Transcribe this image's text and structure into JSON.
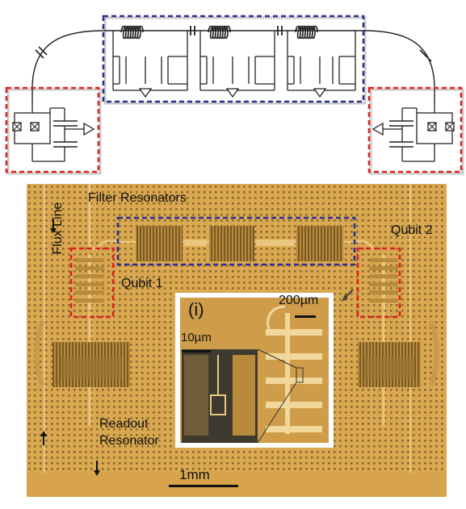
{
  "labels": {
    "flux_line": "Flux Line",
    "filter_resonators": "Filter Resonators",
    "qubit_1": "Qubit 1",
    "qubit_2": "Qubit 2",
    "inset_tag": "(i)",
    "scale_200um": "200µm",
    "scale_10um": "10µm",
    "readout_line1": "Readout",
    "readout_line2": "Resonator",
    "scale_1mm": "1mm"
  },
  "colors": {
    "filter_box": "#2a2f8f",
    "qubit_box": "#e02020",
    "chip_background": "#d4a24a",
    "metal": "#e9c780",
    "circuit_line": "#222222"
  },
  "icons": [
    "inductor-coil-icon",
    "capacitor-icon",
    "ground-triangle-icon",
    "squid-junction-icon"
  ]
}
